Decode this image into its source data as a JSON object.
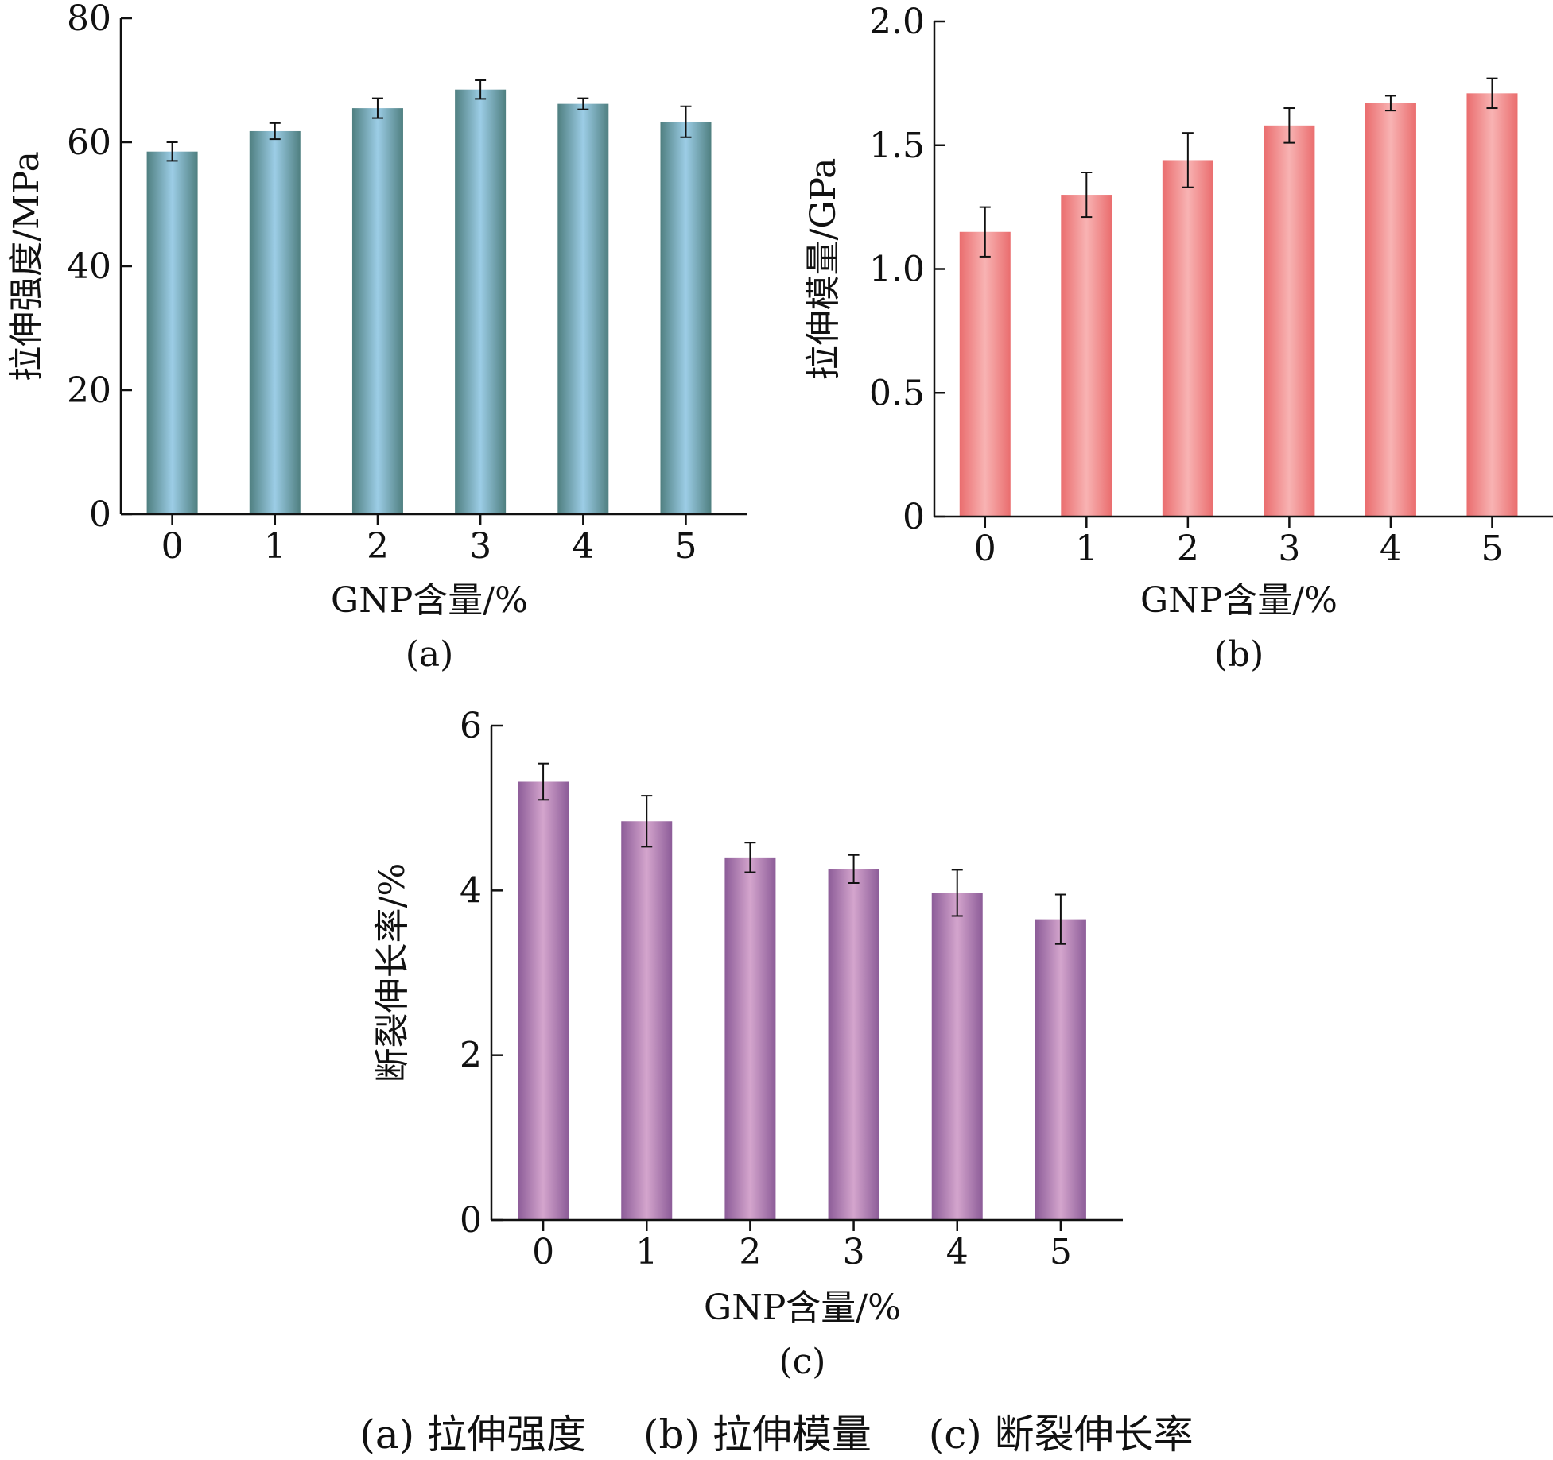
{
  "chart_data": [
    {
      "type": "bar",
      "panel_label": "(a)",
      "xlabel": "GNP含量/%",
      "ylabel": "拉伸强度/MPa",
      "categories": [
        "0",
        "1",
        "2",
        "3",
        "4",
        "5"
      ],
      "values": [
        58.5,
        61.8,
        65.5,
        68.5,
        66.2,
        63.3
      ],
      "errors": [
        1.5,
        1.3,
        1.6,
        1.5,
        0.9,
        2.5
      ],
      "ylim": [
        0,
        80
      ],
      "yticks": [
        "0",
        "20",
        "40",
        "60",
        "80"
      ],
      "ytick_values": [
        0,
        20,
        40,
        60,
        80
      ],
      "colors": {
        "edge": "#4f7f80",
        "center": "#9ccde6"
      },
      "grid": false
    },
    {
      "type": "bar",
      "panel_label": "(b)",
      "xlabel": "GNP含量/%",
      "ylabel": "拉伸模量/GPa",
      "categories": [
        "0",
        "1",
        "2",
        "3",
        "4",
        "5"
      ],
      "values": [
        1.15,
        1.3,
        1.44,
        1.58,
        1.67,
        1.71
      ],
      "errors": [
        0.1,
        0.09,
        0.11,
        0.07,
        0.03,
        0.06
      ],
      "ylim": [
        0,
        2.0
      ],
      "yticks": [
        "0",
        "0.5",
        "1.0",
        "1.5",
        "2.0"
      ],
      "ytick_values": [
        0,
        0.5,
        1.0,
        1.5,
        2.0
      ],
      "colors": {
        "edge": "#ea6d6e",
        "center": "#f8b3b3"
      },
      "grid": false
    },
    {
      "type": "bar",
      "panel_label": "(c)",
      "xlabel": "GNP含量/%",
      "ylabel": "断裂伸长率/%",
      "categories": [
        "0",
        "1",
        "2",
        "3",
        "4",
        "5"
      ],
      "values": [
        5.32,
        4.84,
        4.4,
        4.26,
        3.97,
        3.65
      ],
      "errors": [
        0.22,
        0.31,
        0.18,
        0.17,
        0.28,
        0.3
      ],
      "ylim": [
        0,
        6
      ],
      "yticks": [
        "0",
        "2",
        "4",
        "6"
      ],
      "ytick_values": [
        0,
        2,
        4,
        6
      ],
      "colors": {
        "edge": "#8c5c98",
        "center": "#d4a5cd"
      },
      "grid": false
    }
  ],
  "caption": {
    "a": "(a) 拉伸强度",
    "b": "(b) 拉伸模量",
    "c": "(c) 断裂伸长率"
  }
}
